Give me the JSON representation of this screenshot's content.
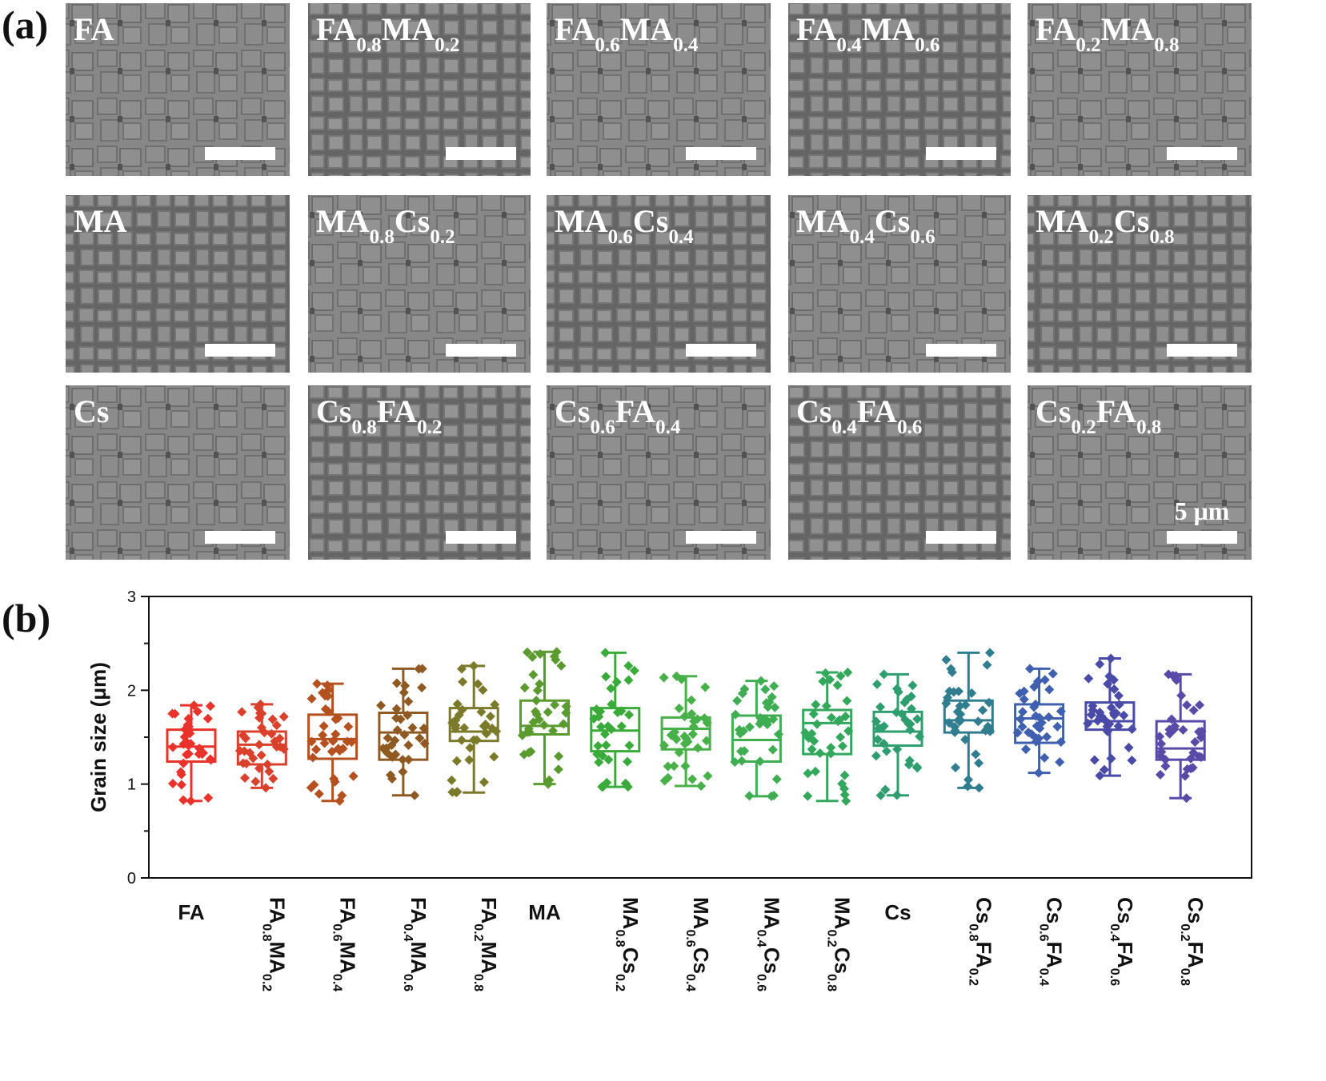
{
  "panel_a": {
    "letter": "(a)",
    "scale_bar_label": "5 μm",
    "images": [
      {
        "label": [
          [
            "FA",
            ""
          ]
        ]
      },
      {
        "label": [
          [
            "FA",
            "0.8"
          ],
          [
            "MA",
            "0.2"
          ]
        ]
      },
      {
        "label": [
          [
            "FA",
            "0.6"
          ],
          [
            "MA",
            "0.4"
          ]
        ]
      },
      {
        "label": [
          [
            "FA",
            "0.4"
          ],
          [
            "MA",
            "0.6"
          ]
        ]
      },
      {
        "label": [
          [
            "FA",
            "0.2"
          ],
          [
            "MA",
            "0.8"
          ]
        ]
      },
      {
        "label": [
          [
            "MA",
            ""
          ]
        ]
      },
      {
        "label": [
          [
            "MA",
            "0.8"
          ],
          [
            "Cs",
            "0.2"
          ]
        ]
      },
      {
        "label": [
          [
            "MA",
            "0.6"
          ],
          [
            "Cs",
            "0.4"
          ]
        ]
      },
      {
        "label": [
          [
            "MA",
            "0.4"
          ],
          [
            "Cs",
            "0.6"
          ]
        ]
      },
      {
        "label": [
          [
            "MA",
            "0.2"
          ],
          [
            "Cs",
            "0.8"
          ]
        ]
      },
      {
        "label": [
          [
            "Cs",
            ""
          ]
        ]
      },
      {
        "label": [
          [
            "Cs",
            "0.8"
          ],
          [
            "FA",
            "0.2"
          ]
        ]
      },
      {
        "label": [
          [
            "Cs",
            "0.6"
          ],
          [
            "FA",
            "0.4"
          ]
        ]
      },
      {
        "label": [
          [
            "Cs",
            "0.4"
          ],
          [
            "FA",
            "0.6"
          ]
        ]
      },
      {
        "label": [
          [
            "Cs",
            "0.2"
          ],
          [
            "FA",
            "0.8"
          ]
        ]
      }
    ]
  },
  "panel_b": {
    "letter": "(b)"
  },
  "chart_data": {
    "type": "box",
    "ylabel": "Grain size (μm)",
    "xlabel": "",
    "ylim": [
      0,
      3
    ],
    "yticks": [
      0,
      1,
      2,
      3
    ],
    "grid": false,
    "categories": [
      [
        [
          "FA",
          ""
        ]
      ],
      [
        [
          "FA",
          "0.8"
        ],
        [
          "MA",
          "0.2"
        ]
      ],
      [
        [
          "FA",
          "0.6"
        ],
        [
          "MA",
          "0.4"
        ]
      ],
      [
        [
          "FA",
          "0.4"
        ],
        [
          "MA",
          "0.6"
        ]
      ],
      [
        [
          "FA",
          "0.2"
        ],
        [
          "MA",
          "0.8"
        ]
      ],
      [
        [
          "MA",
          ""
        ]
      ],
      [
        [
          "MA",
          "0.8"
        ],
        [
          "Cs",
          "0.2"
        ]
      ],
      [
        [
          "MA",
          "0.6"
        ],
        [
          "Cs",
          "0.4"
        ]
      ],
      [
        [
          "MA",
          "0.4"
        ],
        [
          "Cs",
          "0.6"
        ]
      ],
      [
        [
          "MA",
          "0.2"
        ],
        [
          "Cs",
          "0.8"
        ]
      ],
      [
        [
          "Cs",
          ""
        ]
      ],
      [
        [
          "Cs",
          "0.8"
        ],
        [
          "FA",
          "0.2"
        ]
      ],
      [
        [
          "Cs",
          "0.6"
        ],
        [
          "FA",
          "0.4"
        ]
      ],
      [
        [
          "Cs",
          "0.4"
        ],
        [
          "FA",
          "0.6"
        ]
      ],
      [
        [
          "Cs",
          "0.2"
        ],
        [
          "FA",
          "0.8"
        ]
      ]
    ],
    "colors": [
      "#e8322a",
      "#d9412c",
      "#b5501f",
      "#8f5a22",
      "#7a7a2a",
      "#5a9a2e",
      "#3aab3a",
      "#48b048",
      "#3fae52",
      "#33a85c",
      "#2e9e70",
      "#2f7d8e",
      "#3f5fb0",
      "#4a4aa8",
      "#5a4aa8"
    ],
    "boxes": [
      {
        "min": 0.82,
        "q1": 1.24,
        "median": 1.4,
        "q3": 1.58,
        "max": 1.84
      },
      {
        "min": 0.96,
        "q1": 1.21,
        "median": 1.42,
        "q3": 1.56,
        "max": 1.85
      },
      {
        "min": 0.82,
        "q1": 1.27,
        "median": 1.48,
        "q3": 1.74,
        "max": 2.07
      },
      {
        "min": 0.88,
        "q1": 1.26,
        "median": 1.55,
        "q3": 1.76,
        "max": 2.23
      },
      {
        "min": 0.91,
        "q1": 1.46,
        "median": 1.56,
        "q3": 1.81,
        "max": 2.26
      },
      {
        "min": 1.0,
        "q1": 1.53,
        "median": 1.62,
        "q3": 1.89,
        "max": 2.41
      },
      {
        "min": 0.97,
        "q1": 1.35,
        "median": 1.57,
        "q3": 1.81,
        "max": 2.4
      },
      {
        "min": 0.98,
        "q1": 1.37,
        "median": 1.59,
        "q3": 1.71,
        "max": 2.15
      },
      {
        "min": 0.87,
        "q1": 1.24,
        "median": 1.47,
        "q3": 1.73,
        "max": 2.1
      },
      {
        "min": 0.82,
        "q1": 1.32,
        "median": 1.65,
        "q3": 1.79,
        "max": 2.19
      },
      {
        "min": 0.88,
        "q1": 1.41,
        "median": 1.56,
        "q3": 1.77,
        "max": 2.17
      },
      {
        "min": 0.96,
        "q1": 1.55,
        "median": 1.68,
        "q3": 1.89,
        "max": 2.4
      },
      {
        "min": 1.12,
        "q1": 1.44,
        "median": 1.7,
        "q3": 1.85,
        "max": 2.23
      },
      {
        "min": 1.09,
        "q1": 1.58,
        "median": 1.67,
        "q3": 1.87,
        "max": 2.34
      },
      {
        "min": 0.85,
        "q1": 1.26,
        "median": 1.38,
        "q3": 1.67,
        "max": 2.17
      }
    ]
  }
}
